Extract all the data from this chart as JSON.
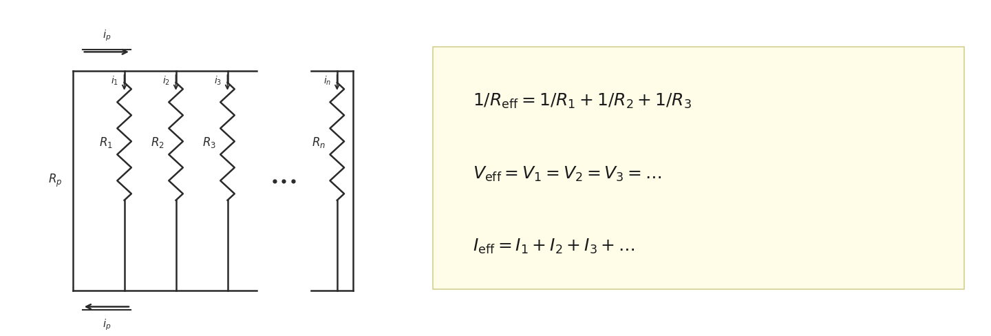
{
  "bg_color": "#ffffff",
  "box_bg_color": "#fffde8",
  "box_edge_color": "#d4d090",
  "circuit_color": "#2a2a2a",
  "text_color": "#1a1a1a",
  "fig_width": 14.4,
  "fig_height": 4.88,
  "dpi": 100
}
